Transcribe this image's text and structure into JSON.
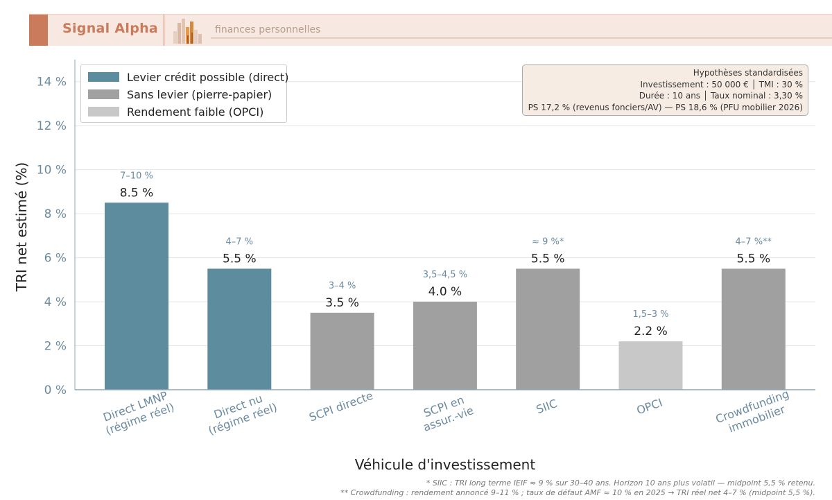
{
  "header": {
    "brand": "Signal Alpha",
    "tagline": "finances personnelles",
    "colors": {
      "banner": "#f7e9e1",
      "accent": "#c97b5c"
    }
  },
  "hypotheses": {
    "title": "Hypothèses standardisées",
    "line1": "Investissement : 50 000 €  │  TMI : 30 %",
    "line2": "Durée : 10 ans  │  Taux nominal : 3,30 %",
    "line3": "PS 17,2 % (revenus fonciers/AV) — PS 18,6 % (PFU mobilier 2026)"
  },
  "footnotes": [
    "* SIIC : TRI long terme IEIF ≈ 9 % sur 30–40 ans. Horizon 10 ans plus volatil — midpoint 5,5 % retenu.",
    "** Crowdfunding : rendement annoncé 9–11 % ; taux de défaut AMF ≈ 10 % en 2025 → TRI réel net 4–7 % (midpoint 5,5 %)."
  ],
  "chart_data": {
    "type": "bar",
    "xlabel": "Véhicule d'investissement",
    "ylabel": "TRI net estimé (%)",
    "ylim": [
      0,
      15
    ],
    "yticks": [
      {
        "value": 0,
        "label": "0 %"
      },
      {
        "value": 2,
        "label": "2 %"
      },
      {
        "value": 4,
        "label": "4 %"
      },
      {
        "value": 6,
        "label": "6 %"
      },
      {
        "value": 8,
        "label": "8 %"
      },
      {
        "value": 10,
        "label": "10 %"
      },
      {
        "value": 12,
        "label": "12 %"
      },
      {
        "value": 14,
        "label": "14 %"
      }
    ],
    "grid": "horizontal",
    "legend_position": "top-left",
    "legend": [
      {
        "key": "levier",
        "label": "Levier crédit possible (direct)",
        "color": "#5d8c9e"
      },
      {
        "key": "sans",
        "label": "Sans levier (pierre-papier)",
        "color": "#a0a0a0"
      },
      {
        "key": "faible",
        "label": "Rendement faible (OPCI)",
        "color": "#c8c8c8"
      }
    ],
    "bars": [
      {
        "category": [
          "Direct LMNP",
          "(régime réel)"
        ],
        "value": 8.5,
        "value_label": "8.5 %",
        "range_label": "7–10 %",
        "group": "levier"
      },
      {
        "category": [
          "Direct nu",
          "(régime réel)"
        ],
        "value": 5.5,
        "value_label": "5.5 %",
        "range_label": "4–7 %",
        "group": "levier"
      },
      {
        "category": [
          "SCPI directe"
        ],
        "value": 3.5,
        "value_label": "3.5 %",
        "range_label": "3–4 %",
        "group": "sans"
      },
      {
        "category": [
          "SCPI en",
          "assur.-vie"
        ],
        "value": 4.0,
        "value_label": "4.0 %",
        "range_label": "3,5–4,5 %",
        "group": "sans"
      },
      {
        "category": [
          "SIIC"
        ],
        "value": 5.5,
        "value_label": "5.5 %",
        "range_label": "≈ 9 %*",
        "group": "sans"
      },
      {
        "category": [
          "OPCI"
        ],
        "value": 2.2,
        "value_label": "2.2 %",
        "range_label": "1,5–3 %",
        "group": "faible"
      },
      {
        "category": [
          "Crowdfunding",
          "immobilier"
        ],
        "value": 5.5,
        "value_label": "5.5 %",
        "range_label": "4–7 %**",
        "group": "sans"
      }
    ]
  }
}
